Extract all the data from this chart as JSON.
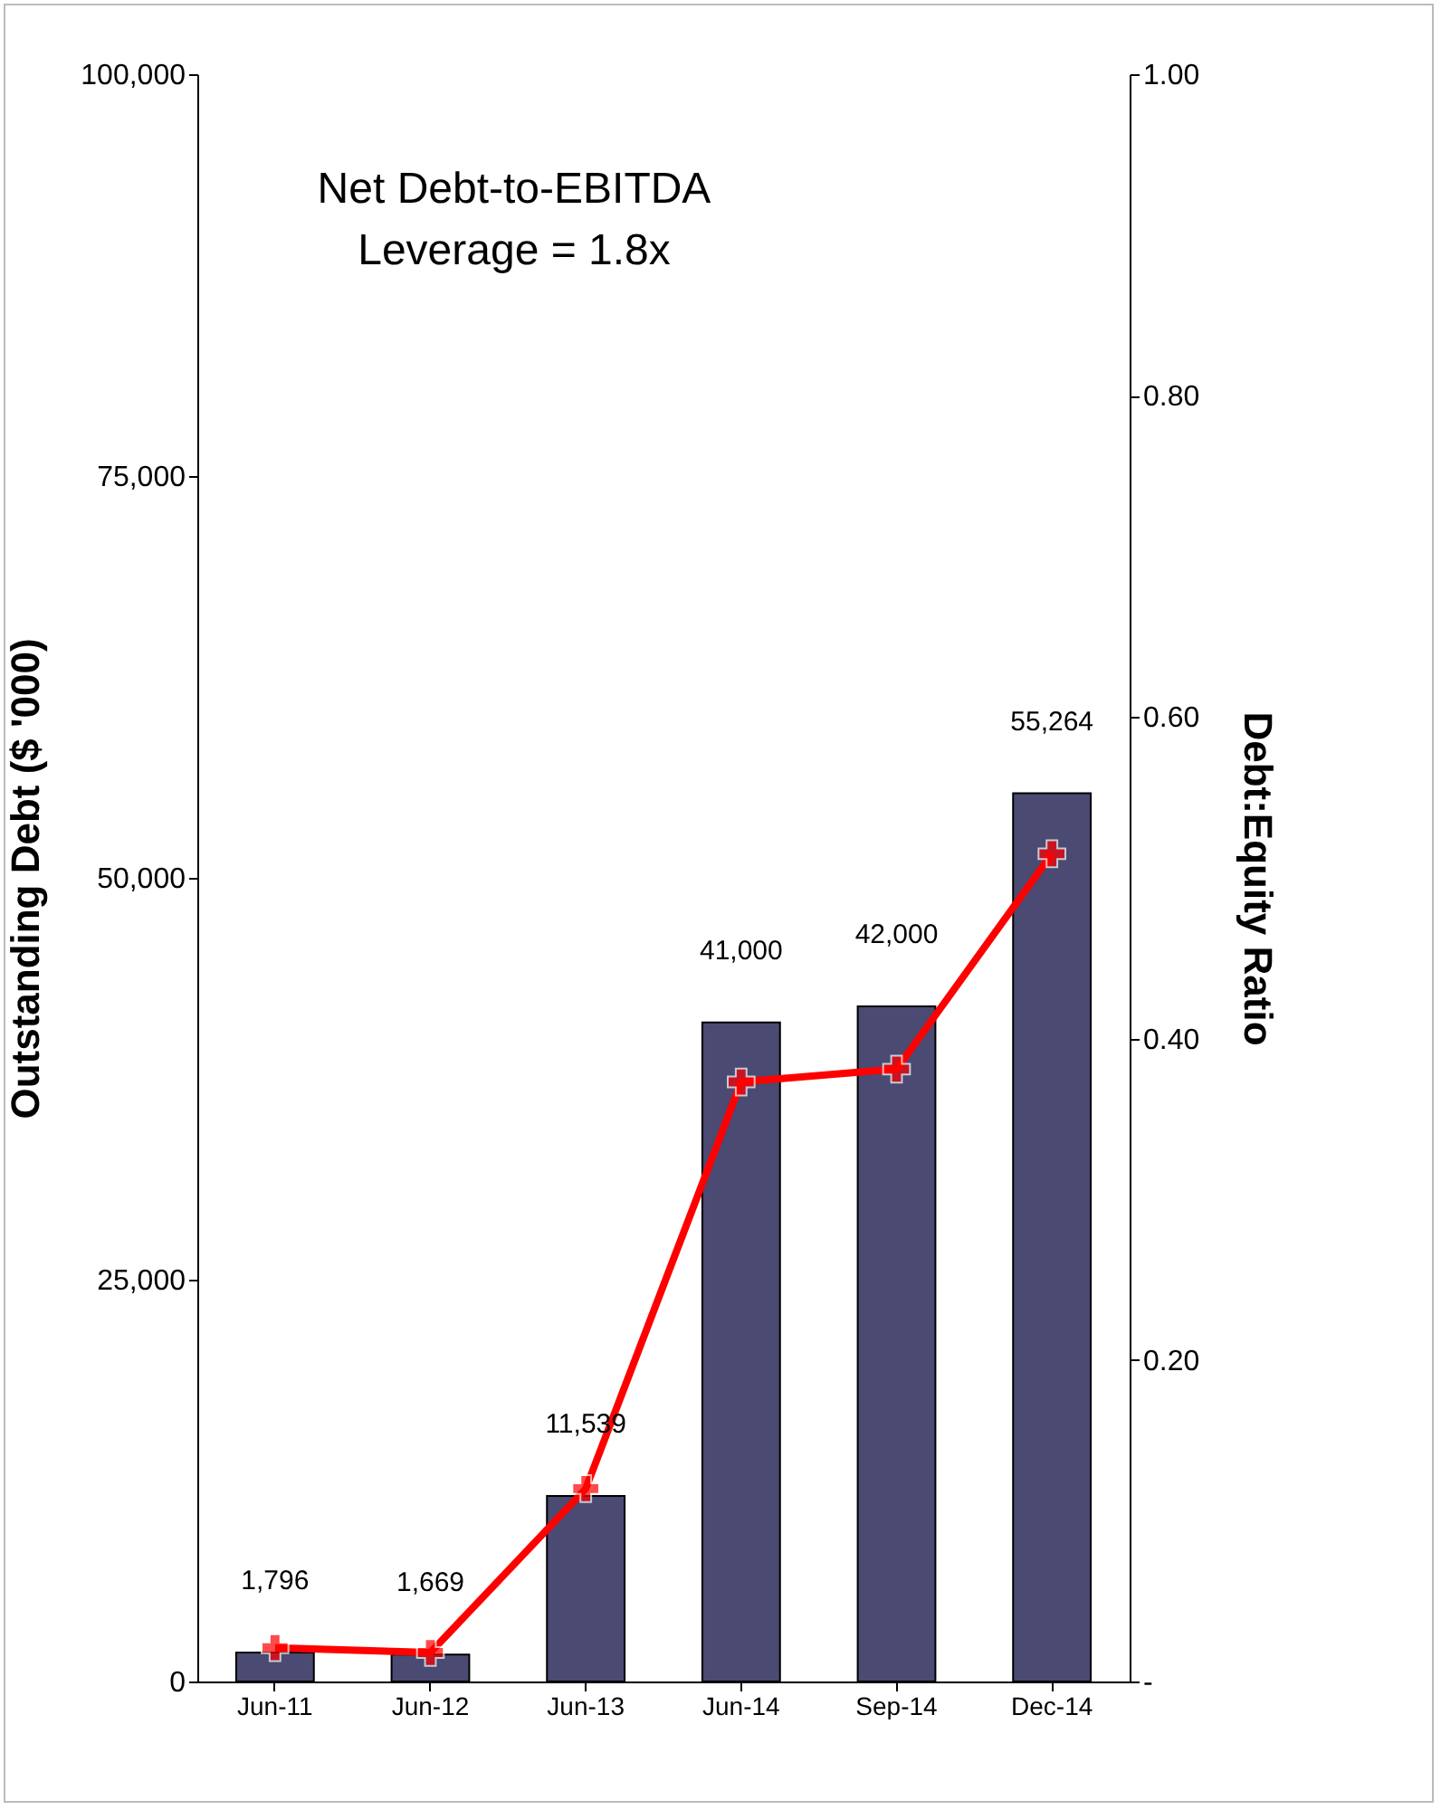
{
  "chart_data": {
    "type": "bar",
    "ylabel": "Outstanding Debt ($ '000)",
    "y2label": "Debt:Equity Ratio",
    "categories": [
      "Jun-11",
      "Jun-12",
      "Jun-13",
      "Jun-14",
      "Sep-14",
      "Dec-14"
    ],
    "series": [
      {
        "color": "#4a4a72",
        "values": [
          1796,
          1669,
          11539,
          41000,
          42000,
          55264
        ],
        "value_labels": [
          "1,796",
          "1,669",
          "11,539",
          "41,000",
          "42,000",
          "55,264"
        ]
      },
      {
        "type": "line",
        "axis": "y2",
        "color": "#ff0000",
        "marker": "cross",
        "line_style": "solid",
        "values": [
          0.021,
          0.018,
          0.12,
          0.373,
          0.381,
          0.515
        ]
      }
    ],
    "ylim": [
      0,
      100000
    ],
    "yticks": [
      0,
      {
        "value": 25000,
        "label": "25,000"
      },
      {
        "value": 50000,
        "label": "50,000"
      },
      {
        "value": 75000,
        "label": "75,000"
      },
      {
        "value": 100000,
        "label": "100,000"
      }
    ],
    "y2lim": [
      0,
      1
    ],
    "y2ticks": [
      {
        "value": 0,
        "label": "-"
      },
      {
        "value": 0.2,
        "label": "0.20"
      },
      {
        "value": 0.4,
        "label": "0.40"
      },
      {
        "value": 0.6,
        "label": "0.60"
      },
      {
        "value": 0.8,
        "label": "0.80"
      },
      {
        "value": 1,
        "label": "1.00"
      }
    ],
    "annotations": [
      "Net Debt-to-EBITDA\nLeverage = 1.8x"
    ],
    "grid": false
  }
}
